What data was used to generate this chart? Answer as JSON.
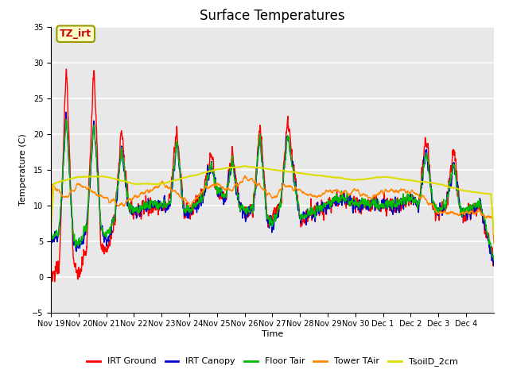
{
  "title": "Surface Temperatures",
  "ylabel": "Temperature (C)",
  "xlabel": "Time",
  "ylim": [
    -5,
    35
  ],
  "yticks": [
    -5,
    0,
    5,
    10,
    15,
    20,
    25,
    30,
    35
  ],
  "annotation_text": "TZ_irt",
  "annotation_color": "#cc0000",
  "annotation_bg": "#ffffcc",
  "annotation_edge": "#999900",
  "background_color": "#e8e8e8",
  "grid_color": "#ffffff",
  "series": [
    {
      "label": "IRT Ground",
      "color": "#ff0000",
      "lw": 1.0
    },
    {
      "label": "IRT Canopy",
      "color": "#0000cc",
      "lw": 1.0
    },
    {
      "label": "Floor Tair",
      "color": "#00bb00",
      "lw": 1.0
    },
    {
      "label": "Tower TAir",
      "color": "#ff8800",
      "lw": 1.0
    },
    {
      "label": "TsoilD_2cm",
      "color": "#dddd00",
      "lw": 1.5
    }
  ],
  "xtick_labels": [
    "Nov 19",
    "Nov 20",
    "Nov 21",
    "Nov 22",
    "Nov 23",
    "Nov 24",
    "Nov 25",
    "Nov 26",
    "Nov 27",
    "Nov 28",
    "Nov 29",
    "Nov 30",
    "Dec 1",
    "Dec 2",
    "Dec 3",
    "Dec 4"
  ],
  "title_fontsize": 12,
  "tick_fontsize": 7,
  "legend_fontsize": 8,
  "figsize": [
    6.4,
    4.8
  ],
  "dpi": 100
}
